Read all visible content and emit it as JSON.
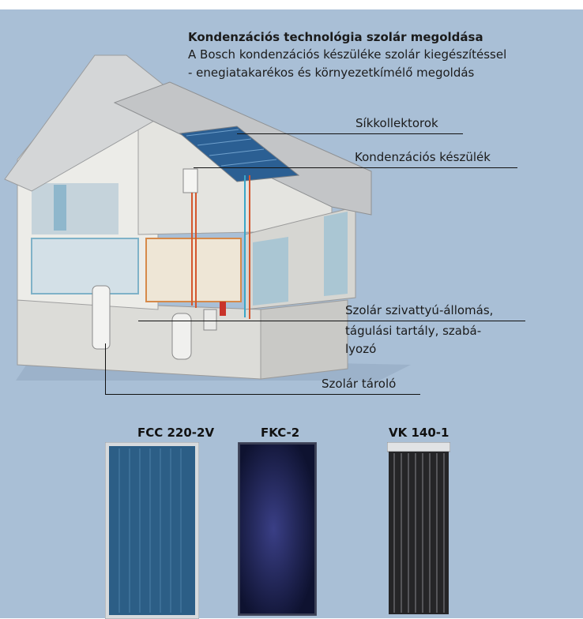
{
  "header": {
    "title": "Kondenzációs technológia szolár megoldása",
    "subtitle_line1": "A Bosch kondenzációs készüléke szolár kiegészítéssel",
    "subtitle_line2": "- enegiatakarékos és környezetkímélő megoldás"
  },
  "callouts": {
    "collectors": "Síkkollektorok",
    "boiler": "Kondenzációs készülék",
    "pump_line1": "Szolár szivattyú-állomás,",
    "pump_line2": "tágulási tartály, szabá-",
    "pump_line3": "lyozó",
    "tank": "Szolár tároló"
  },
  "products": [
    {
      "label": "FCC 220-2V"
    },
    {
      "label": "FKC-2"
    },
    {
      "label": "VK 140-1"
    }
  ],
  "colors": {
    "background": "#a9bfd6",
    "wall": "#e7e7e3",
    "roof": "#c9cbcc",
    "fcc_panel": "#2c5e86",
    "fkc_panel": "#141a3c",
    "vk_panel": "#2a2a2c"
  }
}
